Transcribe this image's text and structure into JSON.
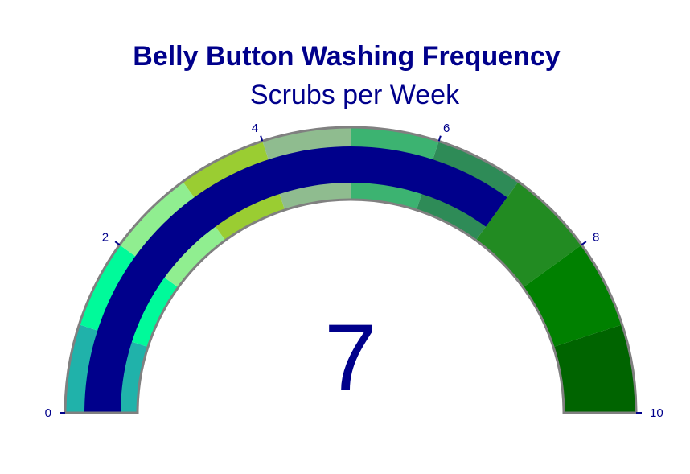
{
  "chart_data": {
    "type": "gauge",
    "title": "Belly Button Washing Frequency",
    "subtitle": "Scrubs per Week",
    "value": 7,
    "value_text": "7",
    "range": [
      0,
      10
    ],
    "ticks": [
      {
        "value": 0,
        "label": "0"
      },
      {
        "value": 2,
        "label": "2"
      },
      {
        "value": 4,
        "label": "4"
      },
      {
        "value": 6,
        "label": "6"
      },
      {
        "value": 8,
        "label": "8"
      },
      {
        "value": 10,
        "label": "10"
      }
    ],
    "steps": [
      {
        "range": [
          0,
          1
        ],
        "color": "#20b2aa"
      },
      {
        "range": [
          1,
          2
        ],
        "color": "#00fa9a"
      },
      {
        "range": [
          2,
          3
        ],
        "color": "#90ee90"
      },
      {
        "range": [
          3,
          4
        ],
        "color": "#9acd32"
      },
      {
        "range": [
          4,
          5
        ],
        "color": "#8fbc8f"
      },
      {
        "range": [
          5,
          6
        ],
        "color": "#3cb371"
      },
      {
        "range": [
          6,
          7
        ],
        "color": "#2e8b57"
      },
      {
        "range": [
          7,
          8
        ],
        "color": "#228b22"
      },
      {
        "range": [
          8,
          9
        ],
        "color": "#008000"
      },
      {
        "range": [
          9,
          10
        ],
        "color": "#006400"
      }
    ],
    "bar_color": "#00008b",
    "border_color": "#808080",
    "text_color": "#00008b"
  }
}
